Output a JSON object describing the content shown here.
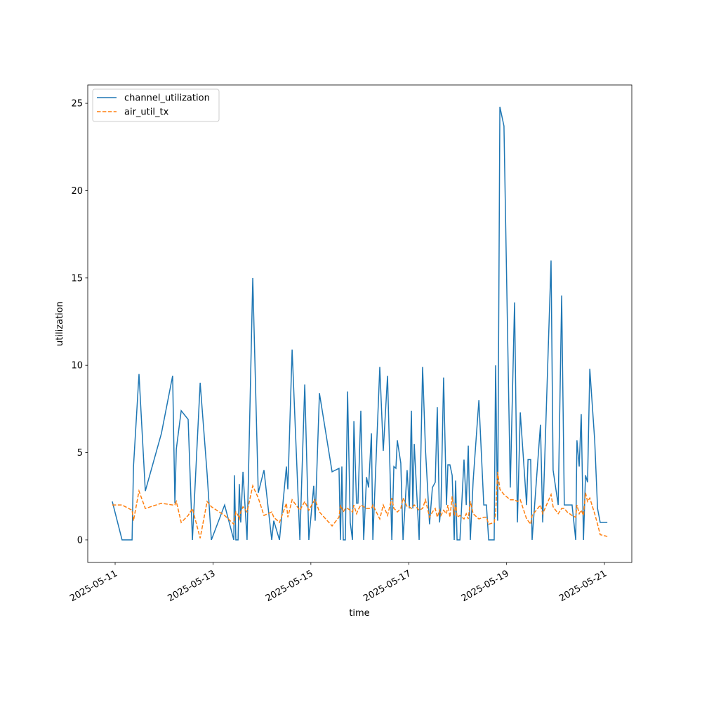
{
  "chart_data": {
    "type": "line",
    "xlabel": "time",
    "ylabel": "utilization",
    "x": [
      "2025-05-10T22:36",
      "2025-05-11T03:24",
      "2025-05-11T08:18",
      "2025-05-11T09:00",
      "2025-05-11T11:42",
      "2025-05-11T14:48",
      "2025-05-11T22:42",
      "2025-05-12T04:12",
      "2025-05-12T05:18",
      "2025-05-12T06:00",
      "2025-05-12T08:24",
      "2025-05-12T11:48",
      "2025-05-12T13:54",
      "2025-05-12T17:42",
      "2025-05-12T21:06",
      "2025-05-12T23:12",
      "2025-05-13T05:42",
      "2025-05-13T10:12",
      "2025-05-13T10:30",
      "2025-05-13T11:12",
      "2025-05-13T12:18",
      "2025-05-13T12:54",
      "2025-05-13T13:36",
      "2025-05-13T14:42",
      "2025-05-13T16:42",
      "2025-05-13T19:30",
      "2025-05-13T22:12",
      "2025-05-14T01:00",
      "2025-05-14T04:48",
      "2025-05-14T05:48",
      "2025-05-14T08:36",
      "2025-05-14T12:00",
      "2025-05-14T12:42",
      "2025-05-14T14:48",
      "2025-05-14T18:36",
      "2025-05-14T21:00",
      "2025-05-14T23:00",
      "2025-05-15T01:24",
      "2025-05-15T02:06",
      "2025-05-15T04:12",
      "2025-05-15T10:24",
      "2025-05-15T13:48",
      "2025-05-15T14:30",
      "2025-05-15T15:12",
      "2025-05-15T15:54",
      "2025-05-15T16:54",
      "2025-05-15T18:00",
      "2025-05-15T19:18",
      "2025-05-15T20:24",
      "2025-05-15T21:06",
      "2025-05-15T22:24",
      "2025-05-15T23:06",
      "2025-05-16T00:30",
      "2025-05-16T01:54",
      "2025-05-16T03:18",
      "2025-05-16T04:18",
      "2025-05-16T05:42",
      "2025-05-16T06:24",
      "2025-05-16T09:48",
      "2025-05-16T11:30",
      "2025-05-16T13:36",
      "2025-05-16T15:42",
      "2025-05-16T16:42",
      "2025-05-16T17:42",
      "2025-05-16T18:24",
      "2025-05-16T20:06",
      "2025-05-16T21:12",
      "2025-05-16T23:12",
      "2025-05-17T00:18",
      "2025-05-17T01:18",
      "2025-05-17T02:00",
      "2025-05-17T02:42",
      "2025-05-17T05:06",
      "2025-05-17T06:48",
      "2025-05-17T08:12",
      "2025-05-17T10:12",
      "2025-05-17T11:36",
      "2025-05-17T13:00",
      "2025-05-17T14:00",
      "2025-05-17T15:06",
      "2025-05-17T15:48",
      "2025-05-17T17:06",
      "2025-05-17T18:30",
      "2025-05-17T19:12",
      "2025-05-17T20:12",
      "2025-05-17T21:18",
      "2025-05-17T22:18",
      "2025-05-17T23:00",
      "2025-05-17T23:42",
      "2025-05-18T01:06",
      "2025-05-18T03:06",
      "2025-05-18T04:12",
      "2025-05-18T05:12",
      "2025-05-18T06:12",
      "2025-05-18T07:36",
      "2025-05-18T10:24",
      "2025-05-18T12:48",
      "2025-05-18T14:06",
      "2025-05-18T15:12",
      "2025-05-18T17:54",
      "2025-05-18T18:36",
      "2025-05-18T19:36",
      "2025-05-18T20:42",
      "2025-05-18T22:42",
      "2025-05-19T01:48",
      "2025-05-19T03:54",
      "2025-05-19T05:18",
      "2025-05-19T06:42",
      "2025-05-19T09:48",
      "2025-05-19T10:30",
      "2025-05-19T11:48",
      "2025-05-19T12:30",
      "2025-05-19T16:36",
      "2025-05-19T17:42",
      "2025-05-19T21:48",
      "2025-05-19T22:48",
      "2025-05-20T01:18",
      "2025-05-20T03:00",
      "2025-05-20T04:18",
      "2025-05-20T05:42",
      "2025-05-20T08:06",
      "2025-05-20T09:54",
      "2025-05-20T10:30",
      "2025-05-20T11:36",
      "2025-05-20T12:36",
      "2025-05-20T13:42",
      "2025-05-20T14:42",
      "2025-05-20T15:42",
      "2025-05-20T16:48",
      "2025-05-20T19:12",
      "2025-05-20T20:36",
      "2025-05-20T21:54",
      "2025-05-21T01:24"
    ],
    "series": [
      {
        "name": "channel_utilization",
        "color": "#1f77b4",
        "linestyle": "solid",
        "values": [
          2.2,
          0,
          0,
          4.2,
          9.5,
          2.8,
          6.1,
          9.4,
          2.1,
          5.2,
          7.4,
          6.9,
          0,
          9.0,
          3.8,
          0,
          2.0,
          0,
          3.7,
          0,
          0,
          3.2,
          1.0,
          3.9,
          0,
          15.0,
          2.7,
          4.0,
          0,
          1.1,
          0,
          4.2,
          2.9,
          10.9,
          0,
          8.9,
          0,
          3.1,
          1.1,
          8.4,
          3.9,
          4.1,
          0,
          4.2,
          0,
          0,
          8.5,
          1.0,
          0,
          6.8,
          2.1,
          2.1,
          7.4,
          0,
          3.6,
          3.0,
          6.1,
          0,
          9.9,
          5.1,
          9.4,
          0,
          4.2,
          4.1,
          5.7,
          4.4,
          0,
          4.0,
          1.8,
          7.4,
          1.8,
          5.5,
          0,
          9.9,
          5.2,
          0.9,
          3.0,
          3.3,
          7.6,
          1.0,
          1.9,
          9.3,
          2.0,
          4.3,
          4.3,
          3.7,
          0,
          3.4,
          0,
          0,
          4.6,
          2.0,
          5.4,
          0,
          3.4,
          8.0,
          2.0,
          2.0,
          0,
          0,
          10.0,
          1.1,
          24.8,
          23.7,
          3.0,
          13.6,
          1.0,
          7.3,
          2.0,
          4.6,
          4.6,
          0,
          6.6,
          1.0,
          16.0,
          4.0,
          2.0,
          14.0,
          2.0,
          2.0,
          2.0,
          0,
          5.7,
          4.2,
          7.2,
          0,
          3.7,
          3.3,
          9.8,
          5.7,
          1.8,
          1.0,
          1.0
        ]
      },
      {
        "name": "air_util_tx",
        "color": "#ff7f0e",
        "linestyle": "dashed",
        "values": [
          2.0,
          2.0,
          1.7,
          1.1,
          2.8,
          1.8,
          2.1,
          2.0,
          2.0,
          2.2,
          1.0,
          1.4,
          1.8,
          0.1,
          2.2,
          1.9,
          1.4,
          0.9,
          1.2,
          1.6,
          1.4,
          1.2,
          1.6,
          1.9,
          1.6,
          3.1,
          2.4,
          1.4,
          1.6,
          1.3,
          1.0,
          2.1,
          1.3,
          2.3,
          1.7,
          2.2,
          1.7,
          2.2,
          2.3,
          1.6,
          0.8,
          1.3,
          2.0,
          1.8,
          1.6,
          1.8,
          1.8,
          1.7,
          1.6,
          2.0,
          1.5,
          1.7,
          2.0,
          1.9,
          1.8,
          1.8,
          1.8,
          2.0,
          1.2,
          2.0,
          1.4,
          2.4,
          1.8,
          1.7,
          1.6,
          1.8,
          2.4,
          1.9,
          1.9,
          1.8,
          1.9,
          2.0,
          1.7,
          1.8,
          2.3,
          1.3,
          1.6,
          1.8,
          1.3,
          1.7,
          1.4,
          1.7,
          1.5,
          2.0,
          1.3,
          2.5,
          1.4,
          2.1,
          1.3,
          1.4,
          1.2,
          1.5,
          1.2,
          2.2,
          1.5,
          1.2,
          1.3,
          1.3,
          0.9,
          1.0,
          1.5,
          3.9,
          2.9,
          2.6,
          2.3,
          2.3,
          2.2,
          2.3,
          1.2,
          1.1,
          0.9,
          1.4,
          2.0,
          1.5,
          2.6,
          1.9,
          1.5,
          1.8,
          1.8,
          1.6,
          1.4,
          1.3,
          2.0,
          1.5,
          1.7,
          1.4,
          2.7,
          2.2,
          2.4,
          1.5,
          0.9,
          0.3,
          0.2
        ]
      }
    ],
    "xlim": [
      "2025-05-10T10:34",
      "2025-05-21T13:24"
    ],
    "xticks": [
      "2025-05-11",
      "2025-05-13",
      "2025-05-15",
      "2025-05-17",
      "2025-05-19",
      "2025-05-21"
    ],
    "ylim": [
      -1.29,
      26.05
    ],
    "yticks": [
      0,
      5,
      10,
      15,
      20,
      25
    ],
    "grid": false,
    "legend": "upper left"
  }
}
